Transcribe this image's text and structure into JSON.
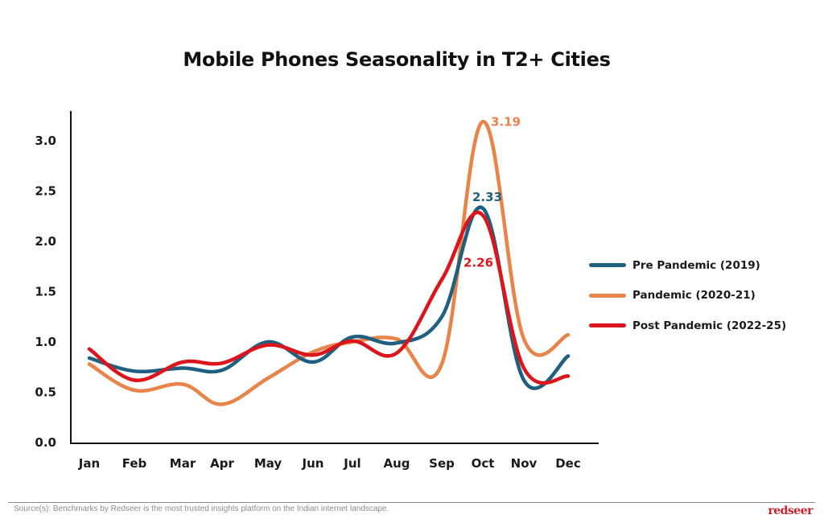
{
  "chart_data": {
    "type": "line",
    "title": "Mobile Phones Seasonality in T2+ Cities",
    "xlabel": "",
    "ylabel": "",
    "categories": [
      "Jan",
      "Feb",
      "Mar",
      "Apr",
      "May",
      "Jun",
      "Jul",
      "Aug",
      "Sep",
      "Oct",
      "Nov",
      "Dec"
    ],
    "ylim": [
      0,
      3.3
    ],
    "yticks": [
      "0.0",
      "0.5",
      "1.0",
      "1.5",
      "2.0",
      "2.5",
      "3.0"
    ],
    "ytick_values": [
      0,
      0.5,
      1.0,
      1.5,
      2.0,
      2.5,
      3.0
    ],
    "grid": false,
    "legend_position": "right",
    "series": [
      {
        "name": "Pre Pandemic (2019)",
        "color": "#1f5f80",
        "values": [
          0.84,
          0.71,
          0.74,
          0.72,
          1.0,
          0.8,
          1.05,
          0.99,
          1.25,
          2.33,
          0.62,
          0.86
        ],
        "annotation": {
          "index": 9,
          "text": "2.33"
        }
      },
      {
        "name": "Pandemic (2020-21)",
        "color": "#e8834a",
        "values": [
          0.78,
          0.52,
          0.58,
          0.38,
          0.64,
          0.9,
          1.0,
          1.03,
          0.78,
          3.19,
          1.03,
          1.07
        ],
        "annotation": {
          "index": 9,
          "text": "3.19"
        }
      },
      {
        "name": "Post Pandemic (2022-25)",
        "color": "#dc141c",
        "values": [
          0.93,
          0.62,
          0.8,
          0.79,
          0.97,
          0.87,
          1.01,
          0.89,
          1.62,
          2.26,
          0.74,
          0.66
        ],
        "annotation": {
          "index": 9,
          "text": "2.26"
        }
      }
    ]
  },
  "footer": {
    "source": "Source(s): Benchmarks by Redseer is the most trusted insights platform on the Indian internet landscape.",
    "logo": "redseer"
  }
}
